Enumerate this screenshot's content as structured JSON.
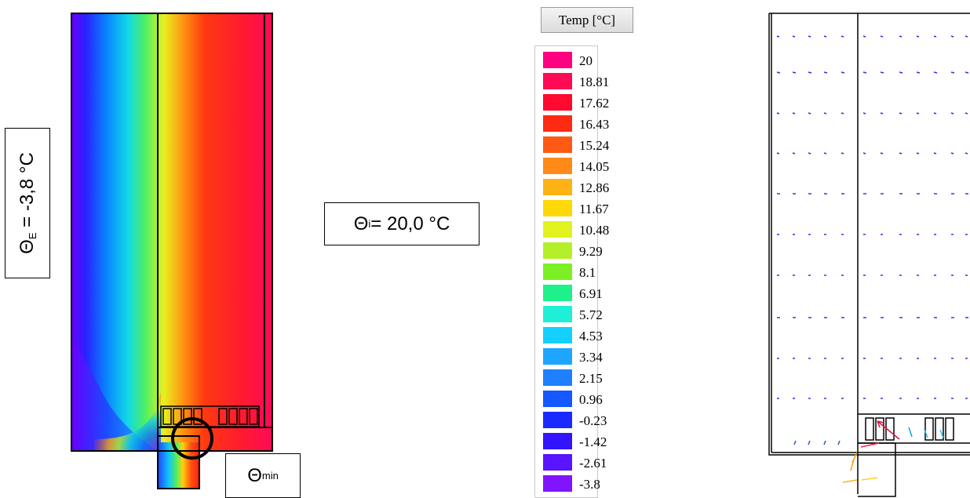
{
  "labels": {
    "theta_e": "Θ",
    "theta_e_sub": "E",
    "theta_e_value": " = -3,8 °C",
    "theta_i": "Θ",
    "theta_i_sub": "i",
    "theta_i_value": " = 20,0 °C",
    "theta_min": "Θ",
    "theta_min_sub": "min"
  },
  "legend": {
    "title": "Temp [°C]",
    "items": [
      {
        "value": "20",
        "color": "#ff0080"
      },
      {
        "value": "18.81",
        "color": "#ff0a55"
      },
      {
        "value": "17.62",
        "color": "#ff0a2e"
      },
      {
        "value": "16.43",
        "color": "#ff2a12"
      },
      {
        "value": "15.24",
        "color": "#ff5a14"
      },
      {
        "value": "14.05",
        "color": "#ff8a18"
      },
      {
        "value": "12.86",
        "color": "#ffb214"
      },
      {
        "value": "11.67",
        "color": "#ffd80a"
      },
      {
        "value": "10.48",
        "color": "#e2f21e"
      },
      {
        "value": "9.29",
        "color": "#b4f02a"
      },
      {
        "value": "8.1",
        "color": "#7cf024"
      },
      {
        "value": "6.91",
        "color": "#1ef08c"
      },
      {
        "value": "5.72",
        "color": "#1ef0d8"
      },
      {
        "value": "4.53",
        "color": "#14d0ff"
      },
      {
        "value": "3.34",
        "color": "#1ea6ff"
      },
      {
        "value": "2.15",
        "color": "#1e80ff"
      },
      {
        "value": "0.96",
        "color": "#1458ff"
      },
      {
        "value": "-0.23",
        "color": "#1a2aff"
      },
      {
        "value": "-1.42",
        "color": "#3214ff"
      },
      {
        "value": "-2.61",
        "color": "#5a14ff"
      },
      {
        "value": "-3.8",
        "color": "#8014ff"
      }
    ]
  }
}
